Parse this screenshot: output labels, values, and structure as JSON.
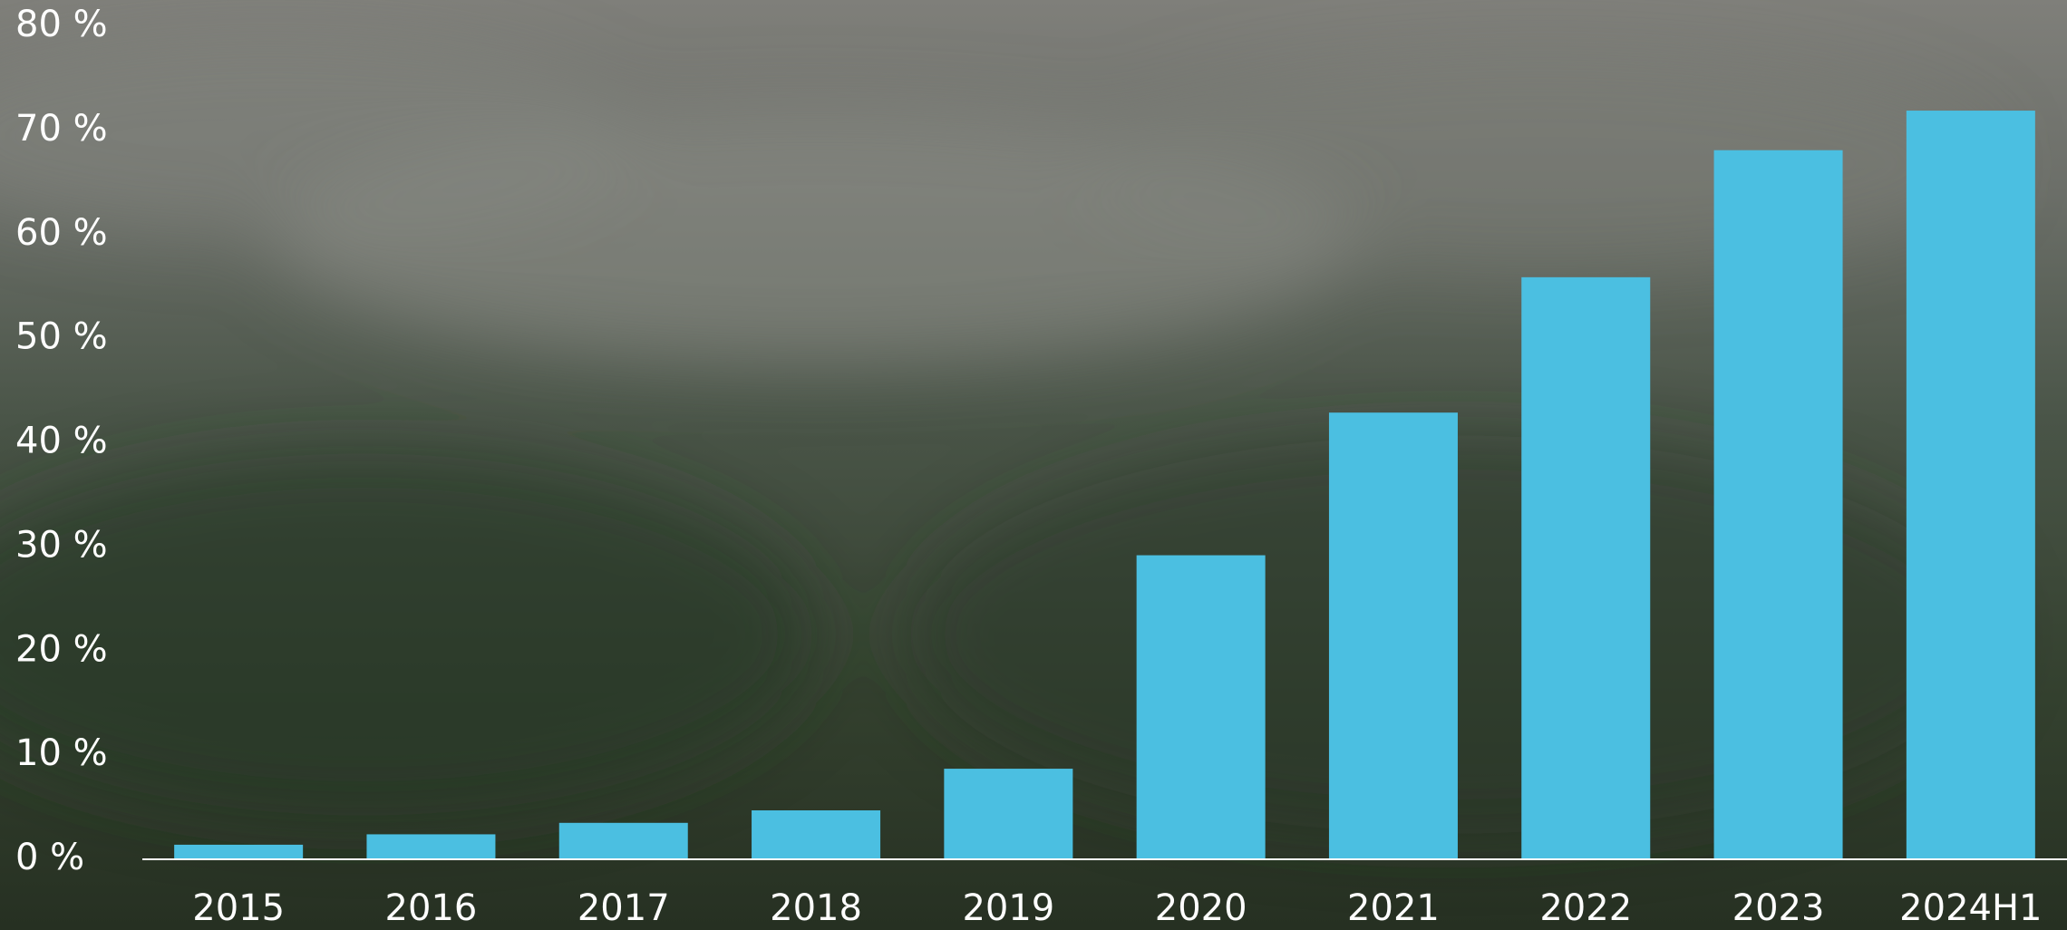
{
  "chart_data": {
    "type": "bar",
    "categories": [
      "2015",
      "2016",
      "2017",
      "2018",
      "2019",
      "2020",
      "2021",
      "2022",
      "2023",
      "2024H1"
    ],
    "values": [
      1.4,
      2.4,
      3.5,
      4.7,
      8.7,
      29.2,
      42.9,
      55.9,
      68.1,
      71.9
    ],
    "color": "#4bbfe1",
    "ylim": [
      0,
      80
    ],
    "yticks": [
      {
        "value": 0,
        "label": "0 %"
      },
      {
        "value": 10,
        "label": "10 %"
      },
      {
        "value": 20,
        "label": "20 %"
      },
      {
        "value": 30,
        "label": "30 %"
      },
      {
        "value": 40,
        "label": "40 %"
      },
      {
        "value": 50,
        "label": "50 %"
      },
      {
        "value": 60,
        "label": "60 %"
      },
      {
        "value": 70,
        "label": "70 %"
      },
      {
        "value": 80,
        "label": "80 %"
      }
    ],
    "grid": false
  }
}
